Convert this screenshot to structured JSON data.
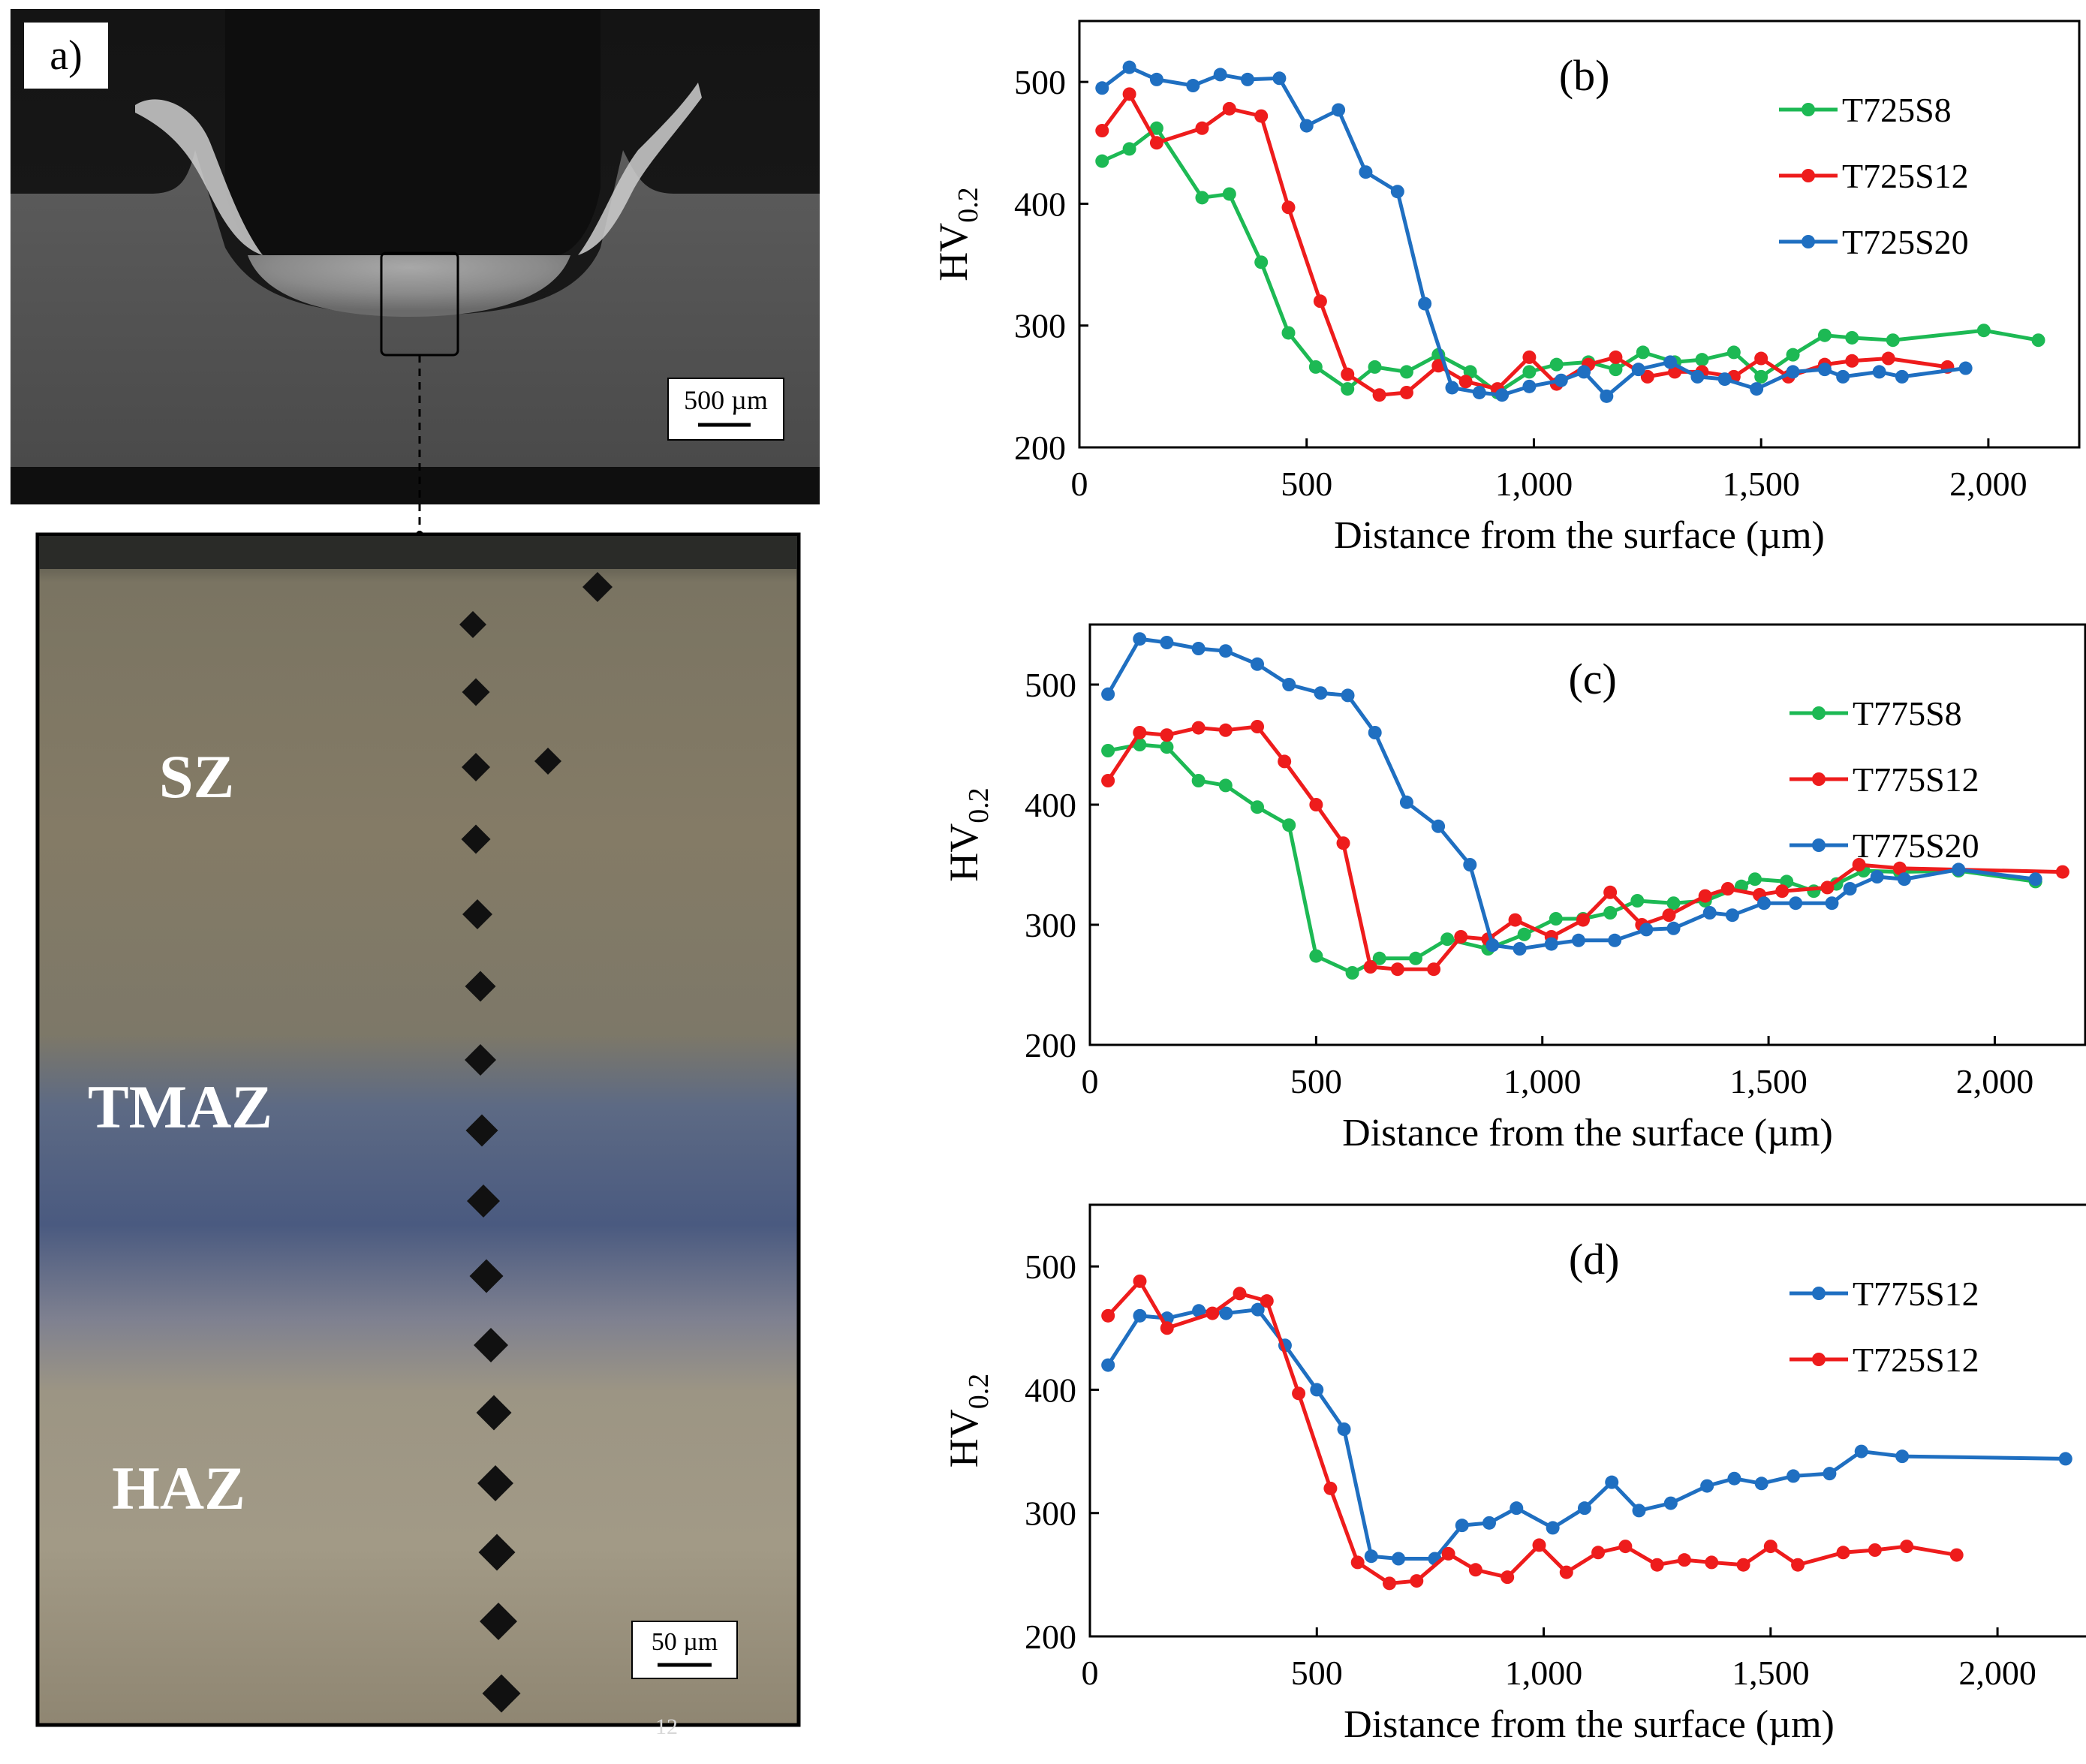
{
  "panel_a": {
    "label": "a)",
    "macro_scale_label": "500 µm",
    "micro_scale_label": "50 µm",
    "zone_labels": [
      "SZ",
      "TMAZ",
      "HAZ"
    ],
    "stray_mark": "12"
  },
  "colors": {
    "green": "#1db954",
    "red": "#ee1c1c",
    "blue": "#1f6fc1",
    "axis": "#000000"
  },
  "chart_data": [
    {
      "type": "line",
      "panel_label": "(b)",
      "xlabel": "Distance from the surface (µm)",
      "ylabel": "HV",
      "ylabel_sub": "0.2",
      "xlim": [
        0,
        2200
      ],
      "ylim": [
        200,
        550
      ],
      "xticks": [
        0,
        500,
        1000,
        1500,
        2000
      ],
      "xtick_labels": [
        "0",
        "500",
        "1,000",
        "1,500",
        "2,000"
      ],
      "yticks": [
        200,
        300,
        400,
        500
      ],
      "ytick_labels": [
        "200",
        "300",
        "400",
        "500"
      ],
      "legend_position": "top-right",
      "series": [
        {
          "name": "T725S8",
          "color": "#1db954",
          "points": [
            [
              50,
              435
            ],
            [
              110,
              445
            ],
            [
              170,
              462
            ],
            [
              270,
              405
            ],
            [
              330,
              408
            ],
            [
              400,
              352
            ],
            [
              460,
              294
            ],
            [
              520,
              266
            ],
            [
              590,
              248
            ],
            [
              650,
              266
            ],
            [
              720,
              262
            ],
            [
              790,
              276
            ],
            [
              860,
              262
            ],
            [
              920,
              245
            ],
            [
              990,
              262
            ],
            [
              1050,
              268
            ],
            [
              1120,
              270
            ],
            [
              1180,
              264
            ],
            [
              1240,
              278
            ],
            [
              1310,
              270
            ],
            [
              1370,
              272
            ],
            [
              1440,
              278
            ],
            [
              1500,
              258
            ],
            [
              1570,
              276
            ],
            [
              1640,
              292
            ],
            [
              1700,
              290
            ],
            [
              1790,
              288
            ],
            [
              1990,
              296
            ],
            [
              2110,
              288
            ]
          ]
        },
        {
          "name": "T725S12",
          "color": "#ee1c1c",
          "points": [
            [
              50,
              460
            ],
            [
              110,
              490
            ],
            [
              170,
              450
            ],
            [
              270,
              462
            ],
            [
              330,
              478
            ],
            [
              400,
              472
            ],
            [
              460,
              397
            ],
            [
              530,
              320
            ],
            [
              590,
              260
            ],
            [
              660,
              243
            ],
            [
              720,
              245
            ],
            [
              790,
              267
            ],
            [
              850,
              254
            ],
            [
              920,
              248
            ],
            [
              990,
              274
            ],
            [
              1050,
              252
            ],
            [
              1120,
              268
            ],
            [
              1180,
              274
            ],
            [
              1250,
              258
            ],
            [
              1310,
              262
            ],
            [
              1370,
              262
            ],
            [
              1440,
              258
            ],
            [
              1500,
              273
            ],
            [
              1560,
              258
            ],
            [
              1640,
              268
            ],
            [
              1700,
              271
            ],
            [
              1780,
              273
            ],
            [
              1910,
              266
            ]
          ]
        },
        {
          "name": "T725S20",
          "color": "#1f6fc1",
          "points": [
            [
              50,
              495
            ],
            [
              110,
              512
            ],
            [
              170,
              502
            ],
            [
              250,
              497
            ],
            [
              310,
              506
            ],
            [
              370,
              502
            ],
            [
              440,
              503
            ],
            [
              500,
              464
            ],
            [
              570,
              477
            ],
            [
              630,
              426
            ],
            [
              700,
              410
            ],
            [
              760,
              318
            ],
            [
              820,
              249
            ],
            [
              880,
              245
            ],
            [
              930,
              243
            ],
            [
              990,
              250
            ],
            [
              1060,
              255
            ],
            [
              1110,
              262
            ],
            [
              1160,
              242
            ],
            [
              1230,
              264
            ],
            [
              1300,
              270
            ],
            [
              1360,
              258
            ],
            [
              1420,
              256
            ],
            [
              1490,
              248
            ],
            [
              1570,
              262
            ],
            [
              1640,
              264
            ],
            [
              1680,
              258
            ],
            [
              1760,
              262
            ],
            [
              1810,
              258
            ],
            [
              1950,
              265
            ]
          ]
        }
      ]
    },
    {
      "type": "line",
      "panel_label": "(c)",
      "xlabel": "Distance from the surface (µm)",
      "ylabel": "HV",
      "ylabel_sub": "0.2",
      "xlim": [
        0,
        2200
      ],
      "ylim": [
        200,
        550
      ],
      "xticks": [
        0,
        500,
        1000,
        1500,
        2000
      ],
      "xtick_labels": [
        "0",
        "500",
        "1,000",
        "1,500",
        "2,000"
      ],
      "yticks": [
        200,
        300,
        400,
        500
      ],
      "ytick_labels": [
        "200",
        "300",
        "400",
        "500"
      ],
      "legend_position": "top-right",
      "series": [
        {
          "name": "T775S8",
          "color": "#1db954",
          "points": [
            [
              40,
              445
            ],
            [
              110,
              450
            ],
            [
              170,
              448
            ],
            [
              240,
              420
            ],
            [
              300,
              416
            ],
            [
              370,
              398
            ],
            [
              440,
              383
            ],
            [
              500,
              274
            ],
            [
              580,
              260
            ],
            [
              640,
              272
            ],
            [
              720,
              272
            ],
            [
              790,
              288
            ],
            [
              880,
              280
            ],
            [
              960,
              292
            ],
            [
              1030,
              305
            ],
            [
              1090,
              305
            ],
            [
              1150,
              310
            ],
            [
              1210,
              320
            ],
            [
              1290,
              318
            ],
            [
              1360,
              320
            ],
            [
              1440,
              332
            ],
            [
              1470,
              338
            ],
            [
              1540,
              336
            ],
            [
              1600,
              328
            ],
            [
              1650,
              334
            ],
            [
              1710,
              345
            ],
            [
              1790,
              344
            ],
            [
              1920,
              345
            ],
            [
              2090,
              336
            ]
          ]
        },
        {
          "name": "T775S12",
          "color": "#ee1c1c",
          "points": [
            [
              40,
              420
            ],
            [
              110,
              460
            ],
            [
              170,
              458
            ],
            [
              240,
              464
            ],
            [
              300,
              462
            ],
            [
              370,
              465
            ],
            [
              430,
              436
            ],
            [
              500,
              400
            ],
            [
              560,
              368
            ],
            [
              620,
              265
            ],
            [
              680,
              263
            ],
            [
              760,
              263
            ],
            [
              820,
              290
            ],
            [
              880,
              288
            ],
            [
              940,
              304
            ],
            [
              1020,
              290
            ],
            [
              1090,
              304
            ],
            [
              1150,
              327
            ],
            [
              1220,
              300
            ],
            [
              1280,
              308
            ],
            [
              1360,
              324
            ],
            [
              1410,
              330
            ],
            [
              1480,
              325
            ],
            [
              1530,
              328
            ],
            [
              1630,
              331
            ],
            [
              1700,
              350
            ],
            [
              1790,
              347
            ],
            [
              2150,
              344
            ]
          ]
        },
        {
          "name": "T775S20",
          "color": "#1f6fc1",
          "points": [
            [
              40,
              492
            ],
            [
              110,
              538
            ],
            [
              170,
              535
            ],
            [
              240,
              530
            ],
            [
              300,
              528
            ],
            [
              370,
              517
            ],
            [
              440,
              500
            ],
            [
              510,
              493
            ],
            [
              570,
              491
            ],
            [
              630,
              460
            ],
            [
              700,
              402
            ],
            [
              770,
              382
            ],
            [
              840,
              350
            ],
            [
              890,
              283
            ],
            [
              950,
              280
            ],
            [
              1020,
              284
            ],
            [
              1080,
              287
            ],
            [
              1160,
              287
            ],
            [
              1230,
              296
            ],
            [
              1290,
              297
            ],
            [
              1370,
              310
            ],
            [
              1420,
              308
            ],
            [
              1490,
              318
            ],
            [
              1560,
              318
            ],
            [
              1640,
              318
            ],
            [
              1680,
              330
            ],
            [
              1740,
              340
            ],
            [
              1800,
              338
            ],
            [
              1920,
              346
            ],
            [
              2090,
              338
            ]
          ]
        }
      ]
    },
    {
      "type": "line",
      "panel_label": "(d)",
      "xlabel": "Distance from the surface (µm)",
      "ylabel": "HV",
      "ylabel_sub": "0.2",
      "xlim": [
        0,
        2200
      ],
      "ylim": [
        200,
        550
      ],
      "xticks": [
        0,
        500,
        1000,
        1500,
        2000
      ],
      "xtick_labels": [
        "0",
        "500",
        "1,000",
        "1,500",
        "2,000"
      ],
      "yticks": [
        200,
        300,
        400,
        500
      ],
      "ytick_labels": [
        "200",
        "300",
        "400",
        "500"
      ],
      "legend_position": "top-right",
      "series": [
        {
          "name": "T775S12",
          "color": "#1f6fc1",
          "points": [
            [
              40,
              420
            ],
            [
              110,
              460
            ],
            [
              170,
              458
            ],
            [
              240,
              464
            ],
            [
              300,
              462
            ],
            [
              370,
              465
            ],
            [
              430,
              436
            ],
            [
              500,
              400
            ],
            [
              560,
              368
            ],
            [
              620,
              265
            ],
            [
              680,
              263
            ],
            [
              760,
              263
            ],
            [
              820,
              290
            ],
            [
              880,
              292
            ],
            [
              940,
              304
            ],
            [
              1020,
              288
            ],
            [
              1090,
              304
            ],
            [
              1150,
              325
            ],
            [
              1210,
              302
            ],
            [
              1280,
              308
            ],
            [
              1360,
              322
            ],
            [
              1420,
              328
            ],
            [
              1480,
              324
            ],
            [
              1550,
              330
            ],
            [
              1630,
              332
            ],
            [
              1700,
              350
            ],
            [
              1790,
              346
            ],
            [
              2150,
              344
            ]
          ]
        },
        {
          "name": "T725S12",
          "color": "#ee1c1c",
          "points": [
            [
              40,
              460
            ],
            [
              110,
              488
            ],
            [
              170,
              450
            ],
            [
              270,
              462
            ],
            [
              330,
              478
            ],
            [
              390,
              472
            ],
            [
              460,
              397
            ],
            [
              530,
              320
            ],
            [
              590,
              260
            ],
            [
              660,
              243
            ],
            [
              720,
              245
            ],
            [
              790,
              267
            ],
            [
              850,
              254
            ],
            [
              920,
              248
            ],
            [
              990,
              274
            ],
            [
              1050,
              252
            ],
            [
              1120,
              268
            ],
            [
              1180,
              273
            ],
            [
              1250,
              258
            ],
            [
              1310,
              262
            ],
            [
              1370,
              260
            ],
            [
              1440,
              258
            ],
            [
              1500,
              273
            ],
            [
              1560,
              258
            ],
            [
              1660,
              268
            ],
            [
              1730,
              270
            ],
            [
              1800,
              273
            ],
            [
              1910,
              266
            ]
          ]
        }
      ]
    }
  ]
}
